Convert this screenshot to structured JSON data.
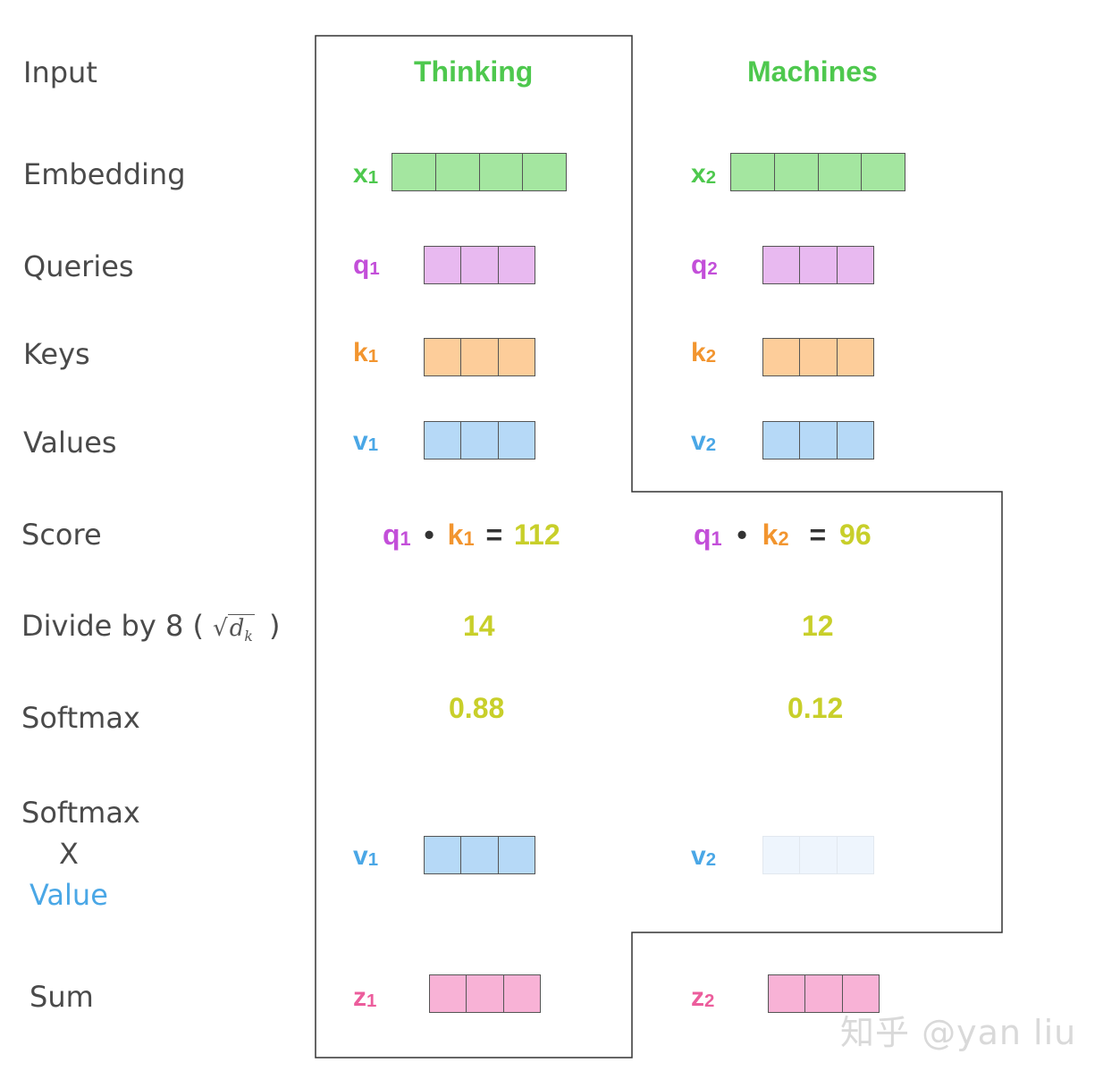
{
  "rows": {
    "input": "Input",
    "embedding": "Embedding",
    "queries": "Queries",
    "keys": "Keys",
    "values": "Values",
    "score": "Score",
    "divide_prefix": "Divide by 8 (",
    "divide_symbol": "d",
    "divide_symbol_sub": "k",
    "divide_suffix": ")",
    "softmax": "Softmax",
    "softmax_x_value_line1": "Softmax",
    "softmax_x_value_line2": "X",
    "softmax_x_value_line3": "Value",
    "sum": "Sum"
  },
  "words": [
    "Thinking",
    "Machines"
  ],
  "vars": {
    "x": "x",
    "q": "q",
    "k": "k",
    "v": "v",
    "z": "z",
    "sub1": "1",
    "sub2": "2"
  },
  "score": {
    "op": "•",
    "eq": "=",
    "s1": "112",
    "s2": "96"
  },
  "divided": [
    "14",
    "12"
  ],
  "softmax": [
    "0.88",
    "0.12"
  ],
  "watermark": "知乎 @yan liu",
  "colors": {
    "label": "#4a4a4a",
    "word": "#4ec84e",
    "x": "#4ec84e",
    "q": "#c34fd9",
    "k": "#f2952f",
    "v": "#4aa7e6",
    "z": "#ec5d9c",
    "number": "#c8cf2a",
    "value_label": "#4aa7e6",
    "embedding_fill": "#a4e6a0",
    "query_fill": "#e8b9f0",
    "key_fill": "#fdcd9a",
    "value_fill": "#b6d9f7",
    "value_faded_fill": "#eef5fd",
    "sum_fill": "#f8b2d6"
  }
}
